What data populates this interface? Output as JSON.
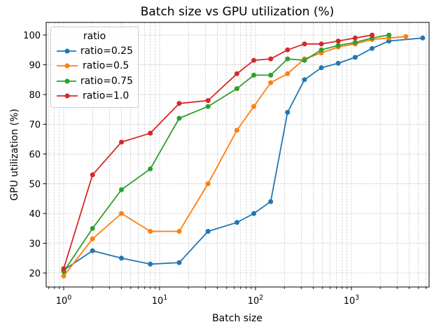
{
  "figure": {
    "background": "#ffffff"
  },
  "chart_data": {
    "type": "line",
    "title": "Batch size vs GPU utilization (%)",
    "xlabel": "Batch size",
    "ylabel": "GPU utilization (%)",
    "xscale": "log",
    "xlim": [
      0.657,
      6457
    ],
    "ylim": [
      15.3,
      104.25
    ],
    "yticks": [
      20,
      30,
      40,
      50,
      60,
      70,
      80,
      90,
      100
    ],
    "xticks": [
      {
        "value": 1,
        "label": "10^0"
      },
      {
        "value": 10,
        "label": "10^1"
      },
      {
        "value": 100,
        "label": "10^2"
      },
      {
        "value": 1000,
        "label": "10^3"
      }
    ],
    "grid": true,
    "grid_color": "#cfcfcf",
    "legend": {
      "title": "ratio",
      "position": "upper-left"
    },
    "series": [
      {
        "name": "ratio=0.25",
        "color": "#1f77b4",
        "x": [
          1,
          2,
          4,
          8,
          16,
          32,
          64,
          96,
          144,
          216,
          324,
          486,
          729,
          1094,
          1640,
          2460,
          5535
        ],
        "y": [
          21,
          27.5,
          25,
          23,
          23.5,
          34,
          37,
          40,
          44,
          74,
          85,
          89,
          90.5,
          92.5,
          95.5,
          98,
          99
        ]
      },
      {
        "name": "ratio=0.5",
        "color": "#ff7f0e",
        "x": [
          1,
          2,
          4,
          8,
          16,
          32,
          64,
          96,
          144,
          216,
          324,
          486,
          729,
          1094,
          1640,
          2460,
          3690
        ],
        "y": [
          19,
          31.5,
          40,
          34,
          34,
          50,
          68,
          76,
          84,
          87,
          92,
          94,
          96,
          97,
          98.5,
          99,
          99.5
        ]
      },
      {
        "name": "ratio=0.75",
        "color": "#2ca02c",
        "x": [
          1,
          2,
          4,
          8,
          16,
          32,
          64,
          96,
          144,
          216,
          324,
          486,
          729,
          1094,
          1640,
          2460
        ],
        "y": [
          20.5,
          35,
          48,
          55,
          72,
          76,
          82,
          86.5,
          86.5,
          92,
          91.5,
          95,
          96.5,
          97.5,
          99,
          100
        ]
      },
      {
        "name": "ratio=1.0",
        "color": "#d62728",
        "x": [
          1,
          2,
          4,
          8,
          16,
          32,
          64,
          96,
          144,
          216,
          324,
          486,
          729,
          1094,
          1640
        ],
        "y": [
          21.5,
          53,
          64,
          67,
          77,
          78,
          87,
          91.5,
          92,
          95,
          97,
          97,
          98,
          99,
          100
        ]
      }
    ]
  }
}
